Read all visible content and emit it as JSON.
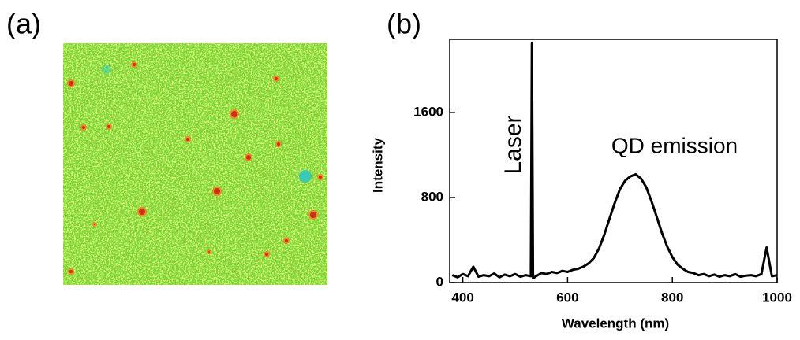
{
  "figure": {
    "labels": [
      "(a)",
      "(b)"
    ]
  },
  "chart_data": {
    "type": "line",
    "x_label": "Wavelength (nm)",
    "y_label": "Intensity",
    "annotations": [
      "Laser",
      "QD emission"
    ],
    "color": "#000000",
    "x": [
      380,
      390,
      400,
      410,
      420,
      430,
      440,
      450,
      460,
      470,
      480,
      490,
      500,
      510,
      520,
      530,
      532,
      534,
      540,
      550,
      560,
      570,
      580,
      590,
      600,
      610,
      620,
      630,
      640,
      650,
      660,
      670,
      680,
      690,
      700,
      710,
      720,
      730,
      740,
      750,
      760,
      770,
      780,
      790,
      800,
      810,
      820,
      830,
      840,
      850,
      860,
      870,
      880,
      890,
      900,
      910,
      920,
      930,
      940,
      950,
      960,
      970,
      980,
      990,
      1000
    ],
    "values": [
      70,
      50,
      80,
      60,
      150,
      55,
      70,
      60,
      85,
      50,
      75,
      60,
      80,
      55,
      70,
      60,
      2250,
      40,
      60,
      90,
      80,
      100,
      90,
      110,
      100,
      120,
      130,
      150,
      180,
      230,
      320,
      450,
      600,
      750,
      880,
      960,
      1000,
      1020,
      980,
      900,
      770,
      620,
      470,
      340,
      240,
      170,
      130,
      100,
      90,
      70,
      80,
      60,
      75,
      55,
      70,
      60,
      80,
      55,
      65,
      70,
      60,
      80,
      330,
      60,
      70
    ],
    "xlim": [
      375,
      1000
    ],
    "xticks": [
      400,
      600,
      800,
      1000
    ],
    "ylim": [
      0,
      2290
    ],
    "yticks": [
      0,
      800,
      1600
    ]
  }
}
